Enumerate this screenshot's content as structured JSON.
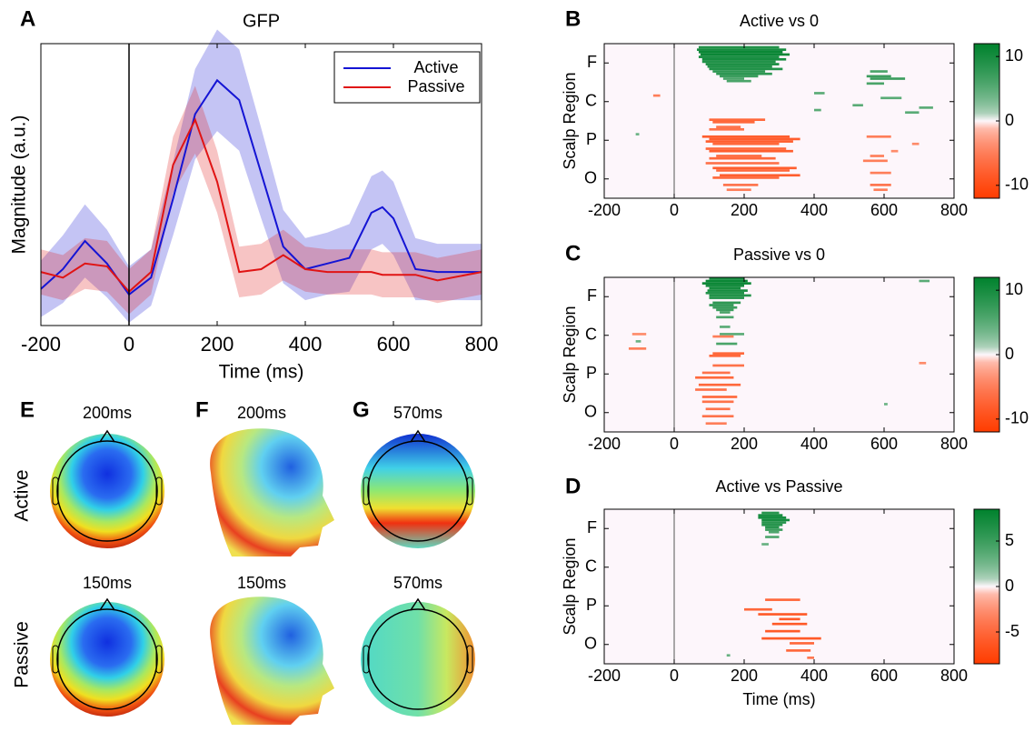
{
  "chart_data": [
    {
      "type": "line",
      "panel_label": "A",
      "title": "GFP",
      "xlabel": "Time (ms)",
      "ylabel": "Magnitude (a.u.)",
      "x": [
        -200,
        -150,
        -100,
        -50,
        0,
        50,
        100,
        150,
        200,
        250,
        300,
        350,
        400,
        450,
        500,
        550,
        575,
        600,
        650,
        700,
        800
      ],
      "series": [
        {
          "name": "Active",
          "color": "#1414d4",
          "values": [
            1.3,
            2.0,
            3.0,
            2.2,
            1.1,
            1.7,
            4.5,
            7.5,
            8.7,
            8.0,
            5.4,
            2.8,
            2.0,
            2.2,
            2.4,
            4.0,
            4.2,
            3.8,
            2.0,
            1.9,
            1.9
          ],
          "error": [
            1.0,
            1.2,
            1.3,
            1.2,
            1.0,
            1.0,
            1.3,
            1.6,
            1.8,
            1.8,
            1.6,
            1.3,
            1.1,
            1.1,
            1.2,
            1.3,
            1.3,
            1.3,
            1.1,
            1.0,
            1.0
          ]
        },
        {
          "name": "Passive",
          "color": "#e01414",
          "values": [
            1.9,
            1.7,
            2.2,
            2.1,
            1.2,
            1.9,
            5.7,
            7.3,
            5.1,
            1.9,
            2.0,
            2.5,
            2.0,
            1.9,
            1.9,
            1.9,
            1.8,
            1.8,
            1.8,
            1.6,
            1.9
          ],
          "error": [
            0.8,
            0.8,
            0.9,
            0.9,
            0.8,
            0.8,
            1.0,
            1.2,
            1.1,
            0.9,
            0.9,
            0.9,
            0.8,
            0.8,
            0.8,
            0.8,
            0.8,
            0.8,
            0.8,
            0.8,
            0.8
          ]
        }
      ],
      "xlim": [
        -200,
        800
      ],
      "xticks": [
        -200,
        0,
        200,
        400,
        600,
        800
      ],
      "ylim": [
        0,
        10
      ],
      "vline": 0,
      "legend": "upper right"
    },
    {
      "type": "heatmap",
      "panel_label": "B",
      "title": "Active vs 0",
      "ylabel": "Scalp Region",
      "xlim": [
        -200,
        800
      ],
      "xticks": [
        -200,
        0,
        200,
        400,
        600,
        800
      ],
      "ylim": [
        0,
        64
      ],
      "y_inverted": true,
      "yticks": [
        {
          "value": 8,
          "label": "F"
        },
        {
          "value": 24,
          "label": "C"
        },
        {
          "value": 40,
          "label": "P"
        },
        {
          "value": 56,
          "label": "O"
        }
      ],
      "vline": 0,
      "clim": [
        -12,
        12
      ],
      "cticks": [
        -10,
        0,
        10
      ],
      "segments": [
        [
          1,
          70,
          300,
          9
        ],
        [
          2,
          65,
          320,
          10
        ],
        [
          3,
          70,
          310,
          11
        ],
        [
          4,
          75,
          330,
          11
        ],
        [
          5,
          70,
          300,
          10
        ],
        [
          6,
          80,
          320,
          10
        ],
        [
          7,
          80,
          290,
          9
        ],
        [
          8,
          90,
          300,
          10
        ],
        [
          9,
          95,
          280,
          9
        ],
        [
          10,
          100,
          310,
          9
        ],
        [
          11,
          110,
          260,
          8
        ],
        [
          12,
          120,
          280,
          8
        ],
        [
          13,
          130,
          240,
          7
        ],
        [
          14,
          140,
          200,
          6
        ],
        [
          15,
          150,
          220,
          6
        ],
        [
          11,
          560,
          610,
          6
        ],
        [
          13,
          550,
          620,
          7
        ],
        [
          14,
          560,
          660,
          7
        ],
        [
          16,
          550,
          600,
          6
        ],
        [
          20,
          400,
          430,
          5
        ],
        [
          22,
          590,
          650,
          5
        ],
        [
          27,
          400,
          420,
          5
        ],
        [
          26,
          700,
          740,
          5
        ],
        [
          25,
          510,
          540,
          5
        ],
        [
          28,
          660,
          700,
          5
        ],
        [
          37,
          -110,
          -100,
          4
        ],
        [
          21,
          -60,
          -40,
          -5
        ],
        [
          31,
          100,
          260,
          -7
        ],
        [
          32,
          110,
          230,
          -7
        ],
        [
          34,
          120,
          190,
          -6
        ],
        [
          35,
          100,
          200,
          -6
        ],
        [
          38,
          80,
          330,
          -8
        ],
        [
          39,
          100,
          360,
          -8
        ],
        [
          40,
          90,
          340,
          -8
        ],
        [
          41,
          110,
          300,
          -7
        ],
        [
          43,
          90,
          320,
          -7
        ],
        [
          44,
          100,
          340,
          -8
        ],
        [
          46,
          120,
          250,
          -7
        ],
        [
          47,
          100,
          290,
          -7
        ],
        [
          49,
          90,
          300,
          -6
        ],
        [
          51,
          110,
          350,
          -8
        ],
        [
          52,
          120,
          330,
          -7
        ],
        [
          54,
          130,
          360,
          -8
        ],
        [
          55,
          110,
          300,
          -7
        ],
        [
          58,
          140,
          240,
          -6
        ],
        [
          60,
          150,
          220,
          -5
        ],
        [
          38,
          550,
          620,
          -5
        ],
        [
          46,
          560,
          600,
          -5
        ],
        [
          48,
          540,
          610,
          -5
        ],
        [
          53,
          560,
          620,
          -5
        ],
        [
          58,
          560,
          620,
          -6
        ],
        [
          60,
          570,
          610,
          -5
        ],
        [
          41,
          680,
          700,
          -4
        ],
        [
          44,
          620,
          640,
          -4
        ]
      ]
    },
    {
      "type": "heatmap",
      "panel_label": "C",
      "title": "Passive vs 0",
      "ylabel": "Scalp Region",
      "xlim": [
        -200,
        800
      ],
      "xticks": [
        -200,
        0,
        200,
        400,
        600,
        800
      ],
      "ylim": [
        0,
        64
      ],
      "y_inverted": true,
      "yticks": [
        {
          "value": 8,
          "label": "F"
        },
        {
          "value": 24,
          "label": "C"
        },
        {
          "value": 40,
          "label": "P"
        },
        {
          "value": 56,
          "label": "O"
        }
      ],
      "vline": 0,
      "clim": [
        -12,
        12
      ],
      "cticks": [
        -10,
        0,
        10
      ],
      "segments": [
        [
          0,
          100,
          200,
          10
        ],
        [
          1,
          90,
          210,
          11
        ],
        [
          2,
          80,
          220,
          11
        ],
        [
          3,
          90,
          200,
          10
        ],
        [
          4,
          100,
          190,
          10
        ],
        [
          5,
          95,
          210,
          10
        ],
        [
          6,
          90,
          200,
          9
        ],
        [
          7,
          100,
          220,
          9
        ],
        [
          8,
          100,
          200,
          9
        ],
        [
          10,
          110,
          190,
          8
        ],
        [
          11,
          100,
          170,
          8
        ],
        [
          12,
          110,
          180,
          7
        ],
        [
          13,
          120,
          170,
          7
        ],
        [
          14,
          130,
          160,
          6
        ],
        [
          16,
          120,
          170,
          6
        ],
        [
          20,
          130,
          160,
          5
        ],
        [
          23,
          130,
          200,
          5
        ],
        [
          27,
          120,
          180,
          6
        ],
        [
          1,
          700,
          730,
          5
        ],
        [
          26,
          -110,
          -95,
          4
        ],
        [
          52,
          600,
          610,
          4
        ],
        [
          23,
          -120,
          -80,
          -4
        ],
        [
          29,
          -130,
          -80,
          -5
        ],
        [
          24,
          110,
          170,
          -5
        ],
        [
          31,
          110,
          200,
          -7
        ],
        [
          32,
          100,
          190,
          -7
        ],
        [
          36,
          110,
          200,
          -6
        ],
        [
          39,
          80,
          160,
          -6
        ],
        [
          41,
          60,
          170,
          -7
        ],
        [
          44,
          70,
          190,
          -7
        ],
        [
          46,
          60,
          150,
          -6
        ],
        [
          49,
          80,
          180,
          -7
        ],
        [
          51,
          80,
          170,
          -6
        ],
        [
          54,
          90,
          160,
          -6
        ],
        [
          57,
          80,
          170,
          -6
        ],
        [
          60,
          90,
          150,
          -5
        ],
        [
          35,
          700,
          720,
          -4
        ]
      ]
    },
    {
      "type": "heatmap",
      "panel_label": "D",
      "title": "Active vs Passive",
      "ylabel": "Scalp Region",
      "xlabel": "Time (ms)",
      "xlim": [
        -200,
        800
      ],
      "xticks": [
        -200,
        0,
        200,
        400,
        600,
        800
      ],
      "ylim": [
        0,
        64
      ],
      "y_inverted": true,
      "yticks": [
        {
          "value": 8,
          "label": "F"
        },
        {
          "value": 24,
          "label": "C"
        },
        {
          "value": 40,
          "label": "P"
        },
        {
          "value": 56,
          "label": "O"
        }
      ],
      "vline": 0,
      "clim": [
        -8.5,
        8.5
      ],
      "cticks": [
        -5,
        0,
        5
      ],
      "segments": [
        [
          1,
          250,
          300,
          6
        ],
        [
          2,
          240,
          310,
          7
        ],
        [
          3,
          240,
          320,
          7
        ],
        [
          4,
          250,
          330,
          7
        ],
        [
          5,
          250,
          320,
          6
        ],
        [
          6,
          250,
          310,
          6
        ],
        [
          7,
          260,
          300,
          6
        ],
        [
          8,
          260,
          310,
          5
        ],
        [
          9,
          270,
          300,
          4
        ],
        [
          11,
          260,
          300,
          4
        ],
        [
          14,
          250,
          270,
          3
        ],
        [
          60,
          150,
          160,
          3
        ],
        [
          37,
          260,
          360,
          -5
        ],
        [
          41,
          200,
          280,
          -5
        ],
        [
          43,
          240,
          380,
          -6
        ],
        [
          45,
          300,
          360,
          -6
        ],
        [
          47,
          280,
          380,
          -6
        ],
        [
          50,
          260,
          360,
          -6
        ],
        [
          53,
          250,
          420,
          -6
        ],
        [
          55,
          330,
          400,
          -5
        ],
        [
          58,
          320,
          390,
          -5
        ],
        [
          61,
          380,
          400,
          -4
        ]
      ]
    }
  ],
  "topomaps": {
    "rows": [
      "Active",
      "Passive"
    ],
    "panels": [
      {
        "label": "E",
        "times": [
          "200ms",
          "150ms"
        ]
      },
      {
        "label": "F",
        "times": [
          "200ms",
          "150ms"
        ]
      },
      {
        "label": "G",
        "times": [
          "570ms",
          "570ms"
        ]
      }
    ]
  }
}
